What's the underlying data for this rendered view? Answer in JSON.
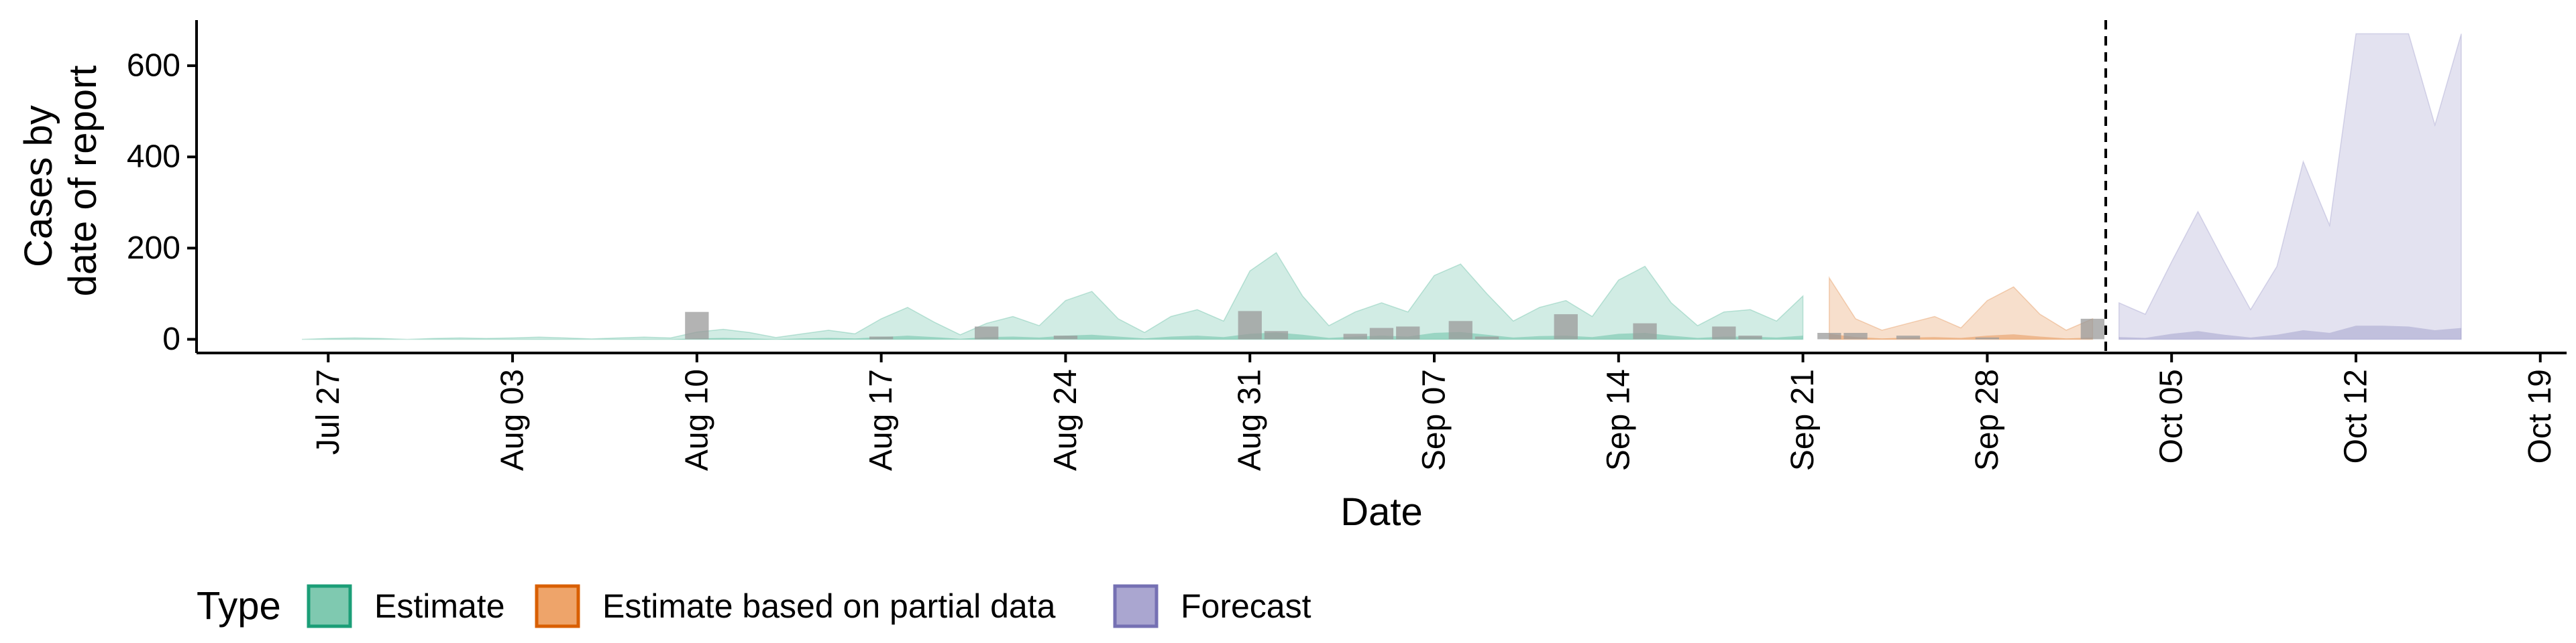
{
  "chart_data": {
    "type": "area",
    "xlabel": "Date",
    "ylabel_lines": [
      "Cases by",
      "date of report"
    ],
    "ylim": [
      -30,
      700
    ],
    "yticks": [
      0,
      200,
      400,
      600
    ],
    "x_start": "2020-07-22",
    "x_end": "2020-10-20",
    "xticks": [
      {
        "date": "2020-07-27",
        "label": "Jul 27"
      },
      {
        "date": "2020-08-03",
        "label": "Aug 03"
      },
      {
        "date": "2020-08-10",
        "label": "Aug 10"
      },
      {
        "date": "2020-08-17",
        "label": "Aug 17"
      },
      {
        "date": "2020-08-24",
        "label": "Aug 24"
      },
      {
        "date": "2020-08-31",
        "label": "Aug 31"
      },
      {
        "date": "2020-09-07",
        "label": "Sep 07"
      },
      {
        "date": "2020-09-14",
        "label": "Sep 14"
      },
      {
        "date": "2020-09-21",
        "label": "Sep 21"
      },
      {
        "date": "2020-09-28",
        "label": "Sep 28"
      },
      {
        "date": "2020-10-05",
        "label": "Oct 05"
      },
      {
        "date": "2020-10-12",
        "label": "Oct 12"
      },
      {
        "date": "2020-10-19",
        "label": "Oct 19"
      }
    ],
    "forecast_date": "2020-10-02",
    "legend": {
      "title": "Type",
      "position": "bottom",
      "entries": [
        {
          "label": "Estimate",
          "fill": "#7fc9b0",
          "stroke": "#1b9e77"
        },
        {
          "label": "Estimate based on partial data",
          "fill": "#eea46a",
          "stroke": "#d95f02"
        },
        {
          "label": "Forecast",
          "fill": "#aaa6d0",
          "stroke": "#7570b3"
        }
      ]
    },
    "series": [
      {
        "name": "Estimate",
        "color": "#1b9e77",
        "fill": "#1b9e77",
        "fill_opacity": 0.2,
        "dates": [
          "2020-07-26",
          "2020-07-27",
          "2020-07-28",
          "2020-07-29",
          "2020-07-30",
          "2020-07-31",
          "2020-08-01",
          "2020-08-02",
          "2020-08-03",
          "2020-08-04",
          "2020-08-05",
          "2020-08-06",
          "2020-08-07",
          "2020-08-08",
          "2020-08-09",
          "2020-08-10",
          "2020-08-11",
          "2020-08-12",
          "2020-08-13",
          "2020-08-14",
          "2020-08-15",
          "2020-08-16",
          "2020-08-17",
          "2020-08-18",
          "2020-08-19",
          "2020-08-20",
          "2020-08-21",
          "2020-08-22",
          "2020-08-23",
          "2020-08-24",
          "2020-08-25",
          "2020-08-26",
          "2020-08-27",
          "2020-08-28",
          "2020-08-29",
          "2020-08-30",
          "2020-08-31",
          "2020-09-01",
          "2020-09-02",
          "2020-09-03",
          "2020-09-04",
          "2020-09-05",
          "2020-09-06",
          "2020-09-07",
          "2020-09-08",
          "2020-09-09",
          "2020-09-10",
          "2020-09-11",
          "2020-09-12",
          "2020-09-13",
          "2020-09-14",
          "2020-09-15",
          "2020-09-16",
          "2020-09-17",
          "2020-09-18",
          "2020-09-19",
          "2020-09-20",
          "2020-09-21"
        ],
        "upper": [
          0,
          2,
          3,
          2,
          0,
          2,
          3,
          2,
          3,
          5,
          3,
          1,
          3,
          5,
          3,
          16,
          22,
          15,
          4,
          12,
          20,
          12,
          45,
          70,
          38,
          10,
          35,
          50,
          30,
          85,
          105,
          45,
          15,
          50,
          65,
          40,
          150,
          190,
          95,
          30,
          60,
          80,
          60,
          140,
          165,
          100,
          40,
          70,
          85,
          50,
          130,
          160,
          80,
          30,
          60,
          65,
          40,
          95
        ],
        "lower": [
          0,
          0,
          0,
          0,
          0,
          0,
          0,
          0,
          0,
          0,
          0,
          0,
          0,
          0,
          0,
          0,
          0,
          0,
          0,
          0,
          0,
          0,
          0,
          0,
          0,
          0,
          0,
          0,
          0,
          0,
          0,
          0,
          0,
          0,
          0,
          0,
          0,
          0,
          0,
          0,
          0,
          0,
          0,
          0,
          0,
          0,
          0,
          0,
          0,
          0,
          0,
          0,
          0,
          0,
          0,
          0,
          0,
          0
        ],
        "inner_upper": [
          0,
          0,
          0,
          0,
          0,
          0,
          0,
          0,
          0,
          0,
          0,
          0,
          0,
          0,
          0,
          2,
          3,
          2,
          0,
          2,
          3,
          2,
          5,
          8,
          5,
          1,
          5,
          6,
          4,
          8,
          10,
          6,
          2,
          6,
          8,
          5,
          12,
          15,
          10,
          3,
          6,
          8,
          6,
          14,
          16,
          10,
          4,
          7,
          8,
          5,
          12,
          14,
          8,
          3,
          6,
          6,
          4,
          8
        ]
      },
      {
        "name": "Estimate based on partial data",
        "color": "#d95f02",
        "fill": "#d95f02",
        "fill_opacity": 0.2,
        "dates": [
          "2020-09-22",
          "2020-09-23",
          "2020-09-24",
          "2020-09-25",
          "2020-09-26",
          "2020-09-27",
          "2020-09-28",
          "2020-09-29",
          "2020-09-30",
          "2020-10-01",
          "2020-10-02"
        ],
        "upper": [
          135,
          45,
          20,
          35,
          50,
          25,
          85,
          115,
          55,
          20,
          45
        ],
        "lower": [
          0,
          0,
          0,
          0,
          0,
          0,
          0,
          0,
          0,
          0,
          0
        ],
        "inner_upper": [
          12,
          5,
          2,
          4,
          5,
          3,
          8,
          11,
          6,
          2,
          4
        ]
      },
      {
        "name": "Forecast",
        "color": "#7570b3",
        "fill": "#7570b3",
        "fill_opacity": 0.2,
        "dates": [
          "2020-10-03",
          "2020-10-04",
          "2020-10-05",
          "2020-10-06",
          "2020-10-07",
          "2020-10-08",
          "2020-10-09",
          "2020-10-10",
          "2020-10-11",
          "2020-10-12",
          "2020-10-13",
          "2020-10-14",
          "2020-10-15",
          "2020-10-16"
        ],
        "upper": [
          80,
          55,
          170,
          280,
          170,
          65,
          160,
          390,
          250,
          670,
          670,
          670,
          470,
          670
        ],
        "lower": [
          0,
          0,
          0,
          0,
          0,
          0,
          0,
          0,
          0,
          0,
          0,
          0,
          0,
          0
        ],
        "inner_upper": [
          5,
          3,
          12,
          18,
          10,
          4,
          10,
          20,
          14,
          30,
          30,
          28,
          20,
          25
        ]
      }
    ],
    "observed": {
      "dates": [
        "2020-08-10",
        "2020-08-17",
        "2020-08-21",
        "2020-08-24",
        "2020-08-31",
        "2020-09-01",
        "2020-09-04",
        "2020-09-05",
        "2020-09-06",
        "2020-09-08",
        "2020-09-09",
        "2020-09-12",
        "2020-09-15",
        "2020-09-18",
        "2020-09-19",
        "2020-09-22",
        "2020-09-23",
        "2020-09-25",
        "2020-09-28",
        "2020-10-02"
      ],
      "values": [
        60,
        6,
        28,
        8,
        62,
        18,
        12,
        25,
        28,
        40,
        6,
        55,
        35,
        28,
        8,
        14,
        14,
        8,
        4,
        45
      ],
      "color": "#999999"
    }
  }
}
